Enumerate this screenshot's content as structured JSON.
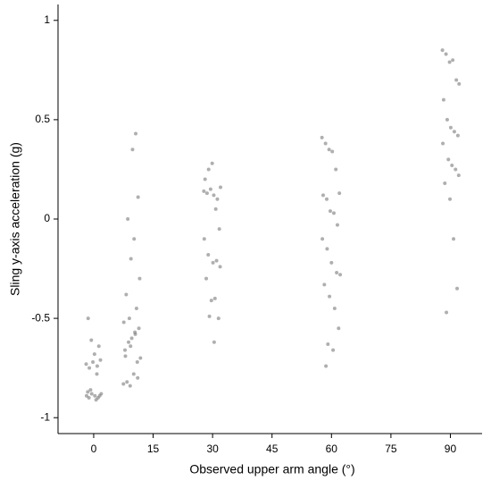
{
  "chart_data": {
    "type": "scatter",
    "x_label": "Observed upper arm angle (°)",
    "y_label": "Sling y-axis acceleration (g)",
    "xlim": [
      -9,
      98
    ],
    "ylim": [
      -1.08,
      1.08
    ],
    "xticks": [
      0,
      15,
      30,
      45,
      60,
      75,
      90
    ],
    "yticks": [
      -1,
      -0.5,
      0,
      0.5,
      1
    ],
    "color": "#6e6e6e",
    "series": [
      {
        "x": [
          -1.8,
          -1.2,
          -0.5,
          0.3,
          1.1,
          1.9,
          -1.5,
          -0.8,
          0.6,
          1.5,
          -1.9,
          -0.2,
          0.9,
          1.7,
          -1.1,
          0.2,
          1.3,
          -0.6,
          0.8,
          -1.4
        ],
        "y": [
          -0.89,
          -0.9,
          -0.88,
          -0.89,
          -0.9,
          -0.88,
          -0.87,
          -0.86,
          -0.91,
          -0.89,
          -0.73,
          -0.72,
          -0.74,
          -0.71,
          -0.75,
          -0.68,
          -0.64,
          -0.61,
          -0.78,
          -0.5
        ]
      },
      {
        "x": [
          7.5,
          8.4,
          9.2,
          10.1,
          11.0,
          11.8,
          7.9,
          8.8,
          9.6,
          10.5,
          11.4,
          7.6,
          9.0,
          10.8,
          8.2,
          11.6,
          9.4,
          10.2,
          8.6,
          11.2,
          9.8,
          10.6,
          8.0,
          9.3,
          10.4,
          11.1
        ],
        "y": [
          -0.83,
          -0.82,
          -0.84,
          -0.78,
          -0.72,
          -0.7,
          -0.66,
          -0.62,
          -0.6,
          -0.58,
          -0.55,
          -0.52,
          -0.5,
          -0.45,
          -0.38,
          -0.3,
          -0.2,
          -0.1,
          0.0,
          0.11,
          0.35,
          0.43,
          -0.69,
          -0.64,
          -0.57,
          -0.8
        ]
      },
      {
        "x": [
          27.8,
          28.6,
          29.5,
          30.3,
          31.2,
          32.0,
          28.1,
          29.0,
          29.9,
          30.8,
          31.7,
          27.9,
          28.9,
          30.1,
          31.0,
          31.9,
          28.4,
          29.7,
          30.6,
          31.5,
          29.2,
          30.4
        ],
        "y": [
          0.14,
          0.13,
          0.15,
          0.12,
          0.1,
          0.16,
          0.2,
          0.25,
          0.28,
          0.05,
          -0.05,
          -0.1,
          -0.18,
          -0.22,
          -0.21,
          -0.24,
          -0.3,
          -0.41,
          -0.4,
          -0.5,
          -0.49,
          -0.62
        ]
      },
      {
        "x": [
          57.6,
          58.5,
          59.4,
          60.2,
          61.1,
          62.0,
          57.9,
          58.8,
          59.7,
          60.6,
          61.5,
          57.7,
          58.9,
          60.0,
          61.3,
          62.2,
          58.2,
          59.5,
          60.8,
          61.8,
          59.1,
          60.4,
          58.6
        ],
        "y": [
          0.41,
          0.38,
          0.35,
          0.34,
          0.25,
          0.13,
          0.12,
          0.1,
          0.04,
          0.03,
          -0.03,
          -0.1,
          -0.15,
          -0.22,
          -0.27,
          -0.28,
          -0.33,
          -0.39,
          -0.45,
          -0.55,
          -0.63,
          -0.66,
          -0.74
        ]
      },
      {
        "x": [
          88.0,
          88.9,
          89.8,
          90.6,
          91.5,
          92.2,
          88.3,
          89.2,
          90.1,
          91.0,
          91.9,
          88.1,
          89.5,
          90.4,
          91.3,
          92.1,
          88.6,
          89.9,
          90.8,
          91.7,
          89.0
        ],
        "y": [
          0.85,
          0.83,
          0.79,
          0.8,
          0.7,
          0.68,
          0.6,
          0.5,
          0.46,
          0.44,
          0.42,
          0.38,
          0.3,
          0.27,
          0.25,
          0.22,
          0.18,
          0.1,
          -0.1,
          -0.35,
          -0.47
        ]
      }
    ]
  }
}
